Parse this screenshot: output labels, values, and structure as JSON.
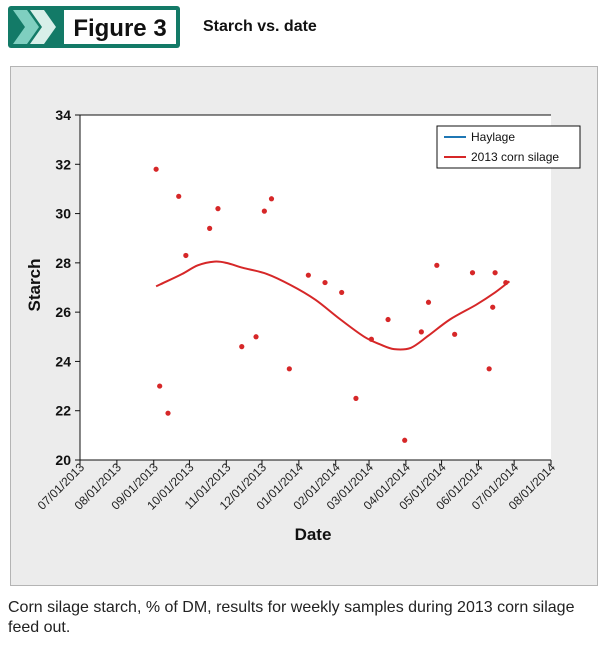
{
  "figure": {
    "label": "Figure 3",
    "title": "Starch vs. date",
    "caption": "Corn silage starch, % of DM, results for weekly samples during 2013 corn silage feed out."
  },
  "colors": {
    "badge_bg": "#137a67",
    "chevron_light": "#7fcfc0",
    "series_red": "#d62728",
    "series_blue": "#1f77b4"
  },
  "chart_data": {
    "type": "scatter",
    "title": "",
    "xlabel": "Date",
    "ylabel": "Starch",
    "ylim": [
      20,
      34
    ],
    "yticks": [
      20,
      22,
      24,
      26,
      28,
      30,
      32,
      34
    ],
    "xlim": [
      "2013-07-01",
      "2014-08-01"
    ],
    "xtick_dates": [
      "2013-07-01",
      "2013-08-01",
      "2013-09-01",
      "2013-10-01",
      "2013-11-01",
      "2013-12-01",
      "2014-01-01",
      "2014-02-01",
      "2014-03-01",
      "2014-04-01",
      "2014-05-01",
      "2014-06-01",
      "2014-07-01",
      "2014-08-01"
    ],
    "xtick_labels": [
      "07/01/2013",
      "08/01/2013",
      "09/01/2013",
      "10/01/2013",
      "11/01/2013",
      "12/01/2013",
      "01/01/2014",
      "02/01/2014",
      "03/01/2014",
      "04/01/2014",
      "05/01/2014",
      "06/01/2014",
      "07/01/2014",
      "08/01/2014"
    ],
    "grid": false,
    "legend_position": "top-right",
    "legend": [
      {
        "name": "Haylage",
        "color": "#1f77b4"
      },
      {
        "name": "2013 corn silage",
        "color": "#d62728"
      }
    ],
    "points": [
      {
        "x": "2013-09-03",
        "y": 31.8
      },
      {
        "x": "2013-09-06",
        "y": 23.0
      },
      {
        "x": "2013-09-13",
        "y": 21.9
      },
      {
        "x": "2013-09-22",
        "y": 30.7
      },
      {
        "x": "2013-09-28",
        "y": 28.3
      },
      {
        "x": "2013-10-18",
        "y": 29.4
      },
      {
        "x": "2013-10-25",
        "y": 30.2
      },
      {
        "x": "2013-11-14",
        "y": 24.6
      },
      {
        "x": "2013-11-26",
        "y": 25.0
      },
      {
        "x": "2013-12-03",
        "y": 30.1
      },
      {
        "x": "2013-12-09",
        "y": 30.6
      },
      {
        "x": "2013-12-24",
        "y": 23.7
      },
      {
        "x": "2014-01-09",
        "y": 27.5
      },
      {
        "x": "2014-01-23",
        "y": 27.2
      },
      {
        "x": "2014-02-06",
        "y": 26.8
      },
      {
        "x": "2014-02-18",
        "y": 22.5
      },
      {
        "x": "2014-03-03",
        "y": 24.9
      },
      {
        "x": "2014-03-17",
        "y": 25.7
      },
      {
        "x": "2014-03-31",
        "y": 20.8
      },
      {
        "x": "2014-04-14",
        "y": 25.2
      },
      {
        "x": "2014-04-20",
        "y": 26.4
      },
      {
        "x": "2014-04-27",
        "y": 27.9
      },
      {
        "x": "2014-05-12",
        "y": 25.1
      },
      {
        "x": "2014-05-27",
        "y": 27.6
      },
      {
        "x": "2014-06-10",
        "y": 23.7
      },
      {
        "x": "2014-06-13",
        "y": 26.2
      },
      {
        "x": "2014-06-15",
        "y": 27.6
      },
      {
        "x": "2014-06-24",
        "y": 27.2
      }
    ],
    "trend_series": {
      "name": "2013 corn silage",
      "points": [
        {
          "x": "2013-09-03",
          "y": 27.05
        },
        {
          "x": "2013-09-12",
          "y": 27.25
        },
        {
          "x": "2013-09-25",
          "y": 27.55
        },
        {
          "x": "2013-10-08",
          "y": 27.9
        },
        {
          "x": "2013-10-22",
          "y": 28.05
        },
        {
          "x": "2013-11-01",
          "y": 28.0
        },
        {
          "x": "2013-11-15",
          "y": 27.8
        },
        {
          "x": "2013-12-05",
          "y": 27.55
        },
        {
          "x": "2013-12-25",
          "y": 27.1
        },
        {
          "x": "2014-01-15",
          "y": 26.5
        },
        {
          "x": "2014-02-05",
          "y": 25.7
        },
        {
          "x": "2014-02-25",
          "y": 25.0
        },
        {
          "x": "2014-03-10",
          "y": 24.7
        },
        {
          "x": "2014-03-22",
          "y": 24.5
        },
        {
          "x": "2014-04-05",
          "y": 24.55
        },
        {
          "x": "2014-04-20",
          "y": 25.05
        },
        {
          "x": "2014-05-08",
          "y": 25.7
        },
        {
          "x": "2014-05-30",
          "y": 26.3
        },
        {
          "x": "2014-06-15",
          "y": 26.8
        },
        {
          "x": "2014-06-27",
          "y": 27.25
        }
      ]
    }
  }
}
